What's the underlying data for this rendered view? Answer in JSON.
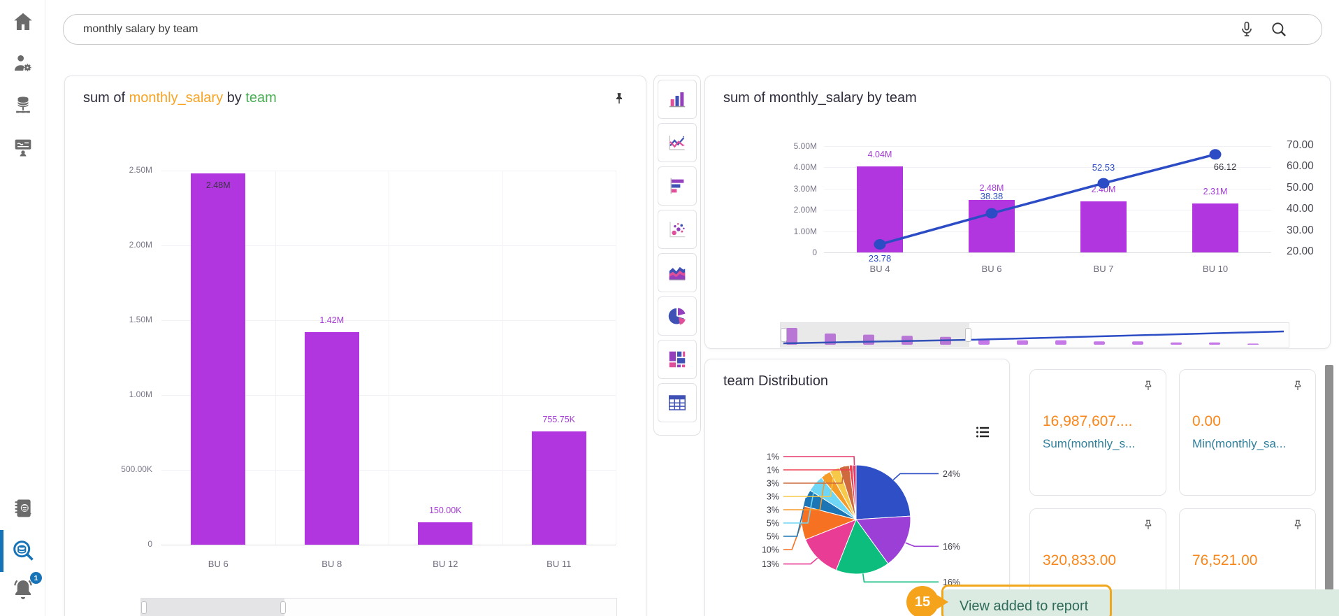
{
  "search": {
    "value": "monthly salary by team"
  },
  "sidebar": {
    "items": [
      {
        "name": "home"
      },
      {
        "name": "user-settings"
      },
      {
        "name": "data-sources"
      },
      {
        "name": "training"
      },
      {
        "name": "catalog-search"
      },
      {
        "name": "data-search",
        "active": true
      },
      {
        "name": "notifications",
        "badge": "1"
      }
    ],
    "notifications_badge": "1"
  },
  "toolbar": {
    "chart_types": [
      "column-chart",
      "line-chart",
      "bar-chart",
      "scatter-chart",
      "area-chart",
      "pie-chart",
      "treemap-chart",
      "table-view"
    ]
  },
  "left_panel": {
    "title_prefix": "sum of ",
    "title_measure": "monthly_salary",
    "title_connector": " by ",
    "title_dimension": "team"
  },
  "combo_panel": {
    "title": "sum of monthly_salary by team"
  },
  "pie_panel": {
    "title": "team Distribution"
  },
  "kpis": [
    {
      "value": "16,987,607....",
      "label": "Sum(monthly_s..."
    },
    {
      "value": "0.00",
      "label": "Min(monthly_sa..."
    },
    {
      "value": "320,833.00",
      "label": ""
    },
    {
      "value": "76,521.00",
      "label": ""
    }
  ],
  "toast": {
    "message": "View added to report",
    "step_badge": "15"
  },
  "colors": {
    "bar_purple": "#b136e0",
    "bar_label_purple": "#a43bd6",
    "line_blue": "#2b4cc4",
    "measure_orange": "#f7a425",
    "dimension_green": "#49ad52",
    "kpi_orange": "#f8861b",
    "kpi_label_teal": "#2e7f9c",
    "active_blue": "#1673b8",
    "toast_green_bg": "#dcebe2",
    "toast_text": "#2f6b5a",
    "callout_orange": "#f5a31a"
  },
  "chart_data": [
    {
      "type": "bar",
      "title": "sum of monthly_salary by team",
      "categories": [
        "BU 6",
        "BU 8",
        "BU 12",
        "BU 11"
      ],
      "values": [
        2480000,
        1420000,
        150000,
        755750
      ],
      "value_labels": [
        "2.48M",
        "1.42M",
        "150.00K",
        "755.75K"
      ],
      "xlabel": "",
      "ylabel": "",
      "ylim": [
        0,
        2500000
      ],
      "ytick_labels": [
        "0",
        "500.00K",
        "1.00M",
        "1.50M",
        "2.00M",
        "2.50M"
      ],
      "grid": true
    },
    {
      "type": "bar+line",
      "title": "sum of monthly_salary by team",
      "categories": [
        "BU 4",
        "BU 6",
        "BU 7",
        "BU 10"
      ],
      "series": [
        {
          "type": "bar",
          "axis": "left",
          "values": [
            4040000,
            2480000,
            2400000,
            2310000
          ],
          "labels": [
            "4.04M",
            "2.48M",
            "2.40M",
            "2.31M"
          ],
          "color": "#b136e0"
        },
        {
          "type": "line",
          "axis": "right",
          "values": [
            23.78,
            38.38,
            52.53,
            66.12
          ],
          "labels": [
            "23.78",
            "38.38",
            "52.53",
            "66.12"
          ],
          "color": "#2b4cc4"
        }
      ],
      "ylim_left": [
        0,
        5000000
      ],
      "ytick_labels_left": [
        "0",
        "1.00M",
        "2.00M",
        "3.00M",
        "4.00M",
        "5.00M"
      ],
      "ylim_right": [
        20,
        70
      ],
      "ytick_labels_right": [
        "20.00",
        "30.00",
        "40.00",
        "50.00",
        "60.00",
        "70.00"
      ],
      "overview_bars": [
        15,
        10,
        9,
        8,
        7,
        5,
        4,
        4,
        3,
        3,
        2,
        2,
        1
      ],
      "grid": true
    },
    {
      "type": "pie",
      "title": "team Distribution",
      "slices": [
        {
          "label": "24%",
          "value": 24,
          "color": "#2e4fc6"
        },
        {
          "label": "16%",
          "value": 16,
          "color": "#9c3fd6"
        },
        {
          "label": "16%",
          "value": 16,
          "color": "#0dbd7d"
        },
        {
          "label": "13%",
          "value": 13,
          "color": "#e93c95"
        },
        {
          "label": "10%",
          "value": 10,
          "color": "#f77122"
        },
        {
          "label": "5%",
          "value": 5,
          "color": "#1c76b5"
        },
        {
          "label": "5%",
          "value": 5,
          "color": "#6fd6f5"
        },
        {
          "label": "3%",
          "value": 3,
          "color": "#f59b28"
        },
        {
          "label": "3%",
          "value": 3,
          "color": "#f7c948"
        },
        {
          "label": "3%",
          "value": 3,
          "color": "#ce6a3d"
        },
        {
          "label": "1%",
          "value": 1,
          "color": "#ed4052"
        },
        {
          "label": "1%",
          "value": 1,
          "color": "#e5396b"
        }
      ]
    }
  ]
}
